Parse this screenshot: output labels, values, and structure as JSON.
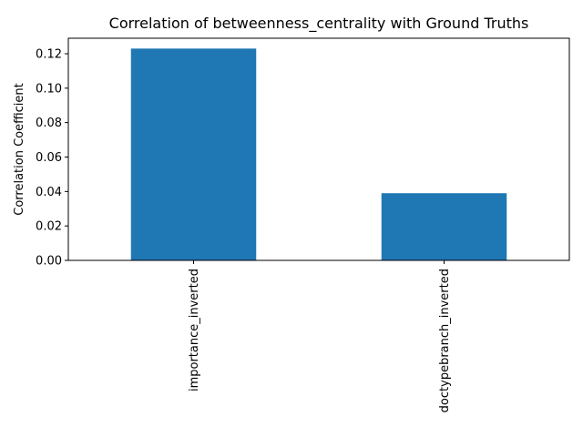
{
  "chart_data": {
    "type": "bar",
    "title": "Correlation of betweenness_centrality with Ground Truths",
    "xlabel": "",
    "ylabel": "Correlation Coefficient",
    "categories": [
      "importance_inverted",
      "doctypebranch_inverted"
    ],
    "values": [
      0.123,
      0.039
    ],
    "ylim": [
      0,
      0.129
    ],
    "yticks": [
      "0.00",
      "0.02",
      "0.04",
      "0.06",
      "0.08",
      "0.10",
      "0.12"
    ],
    "grid": false,
    "legend": "none",
    "bar_color": "#1f77b4"
  }
}
